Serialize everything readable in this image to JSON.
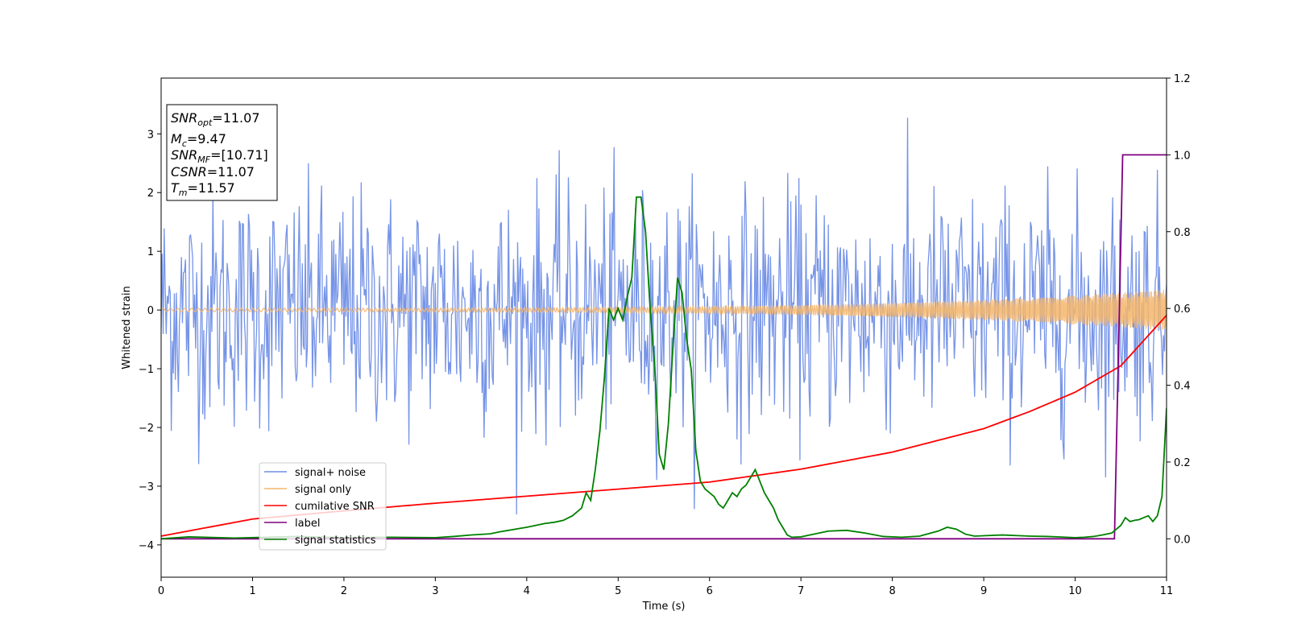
{
  "chart_data": {
    "type": "line",
    "xlabel": "Time (s)",
    "ylabel": "Whitened strain",
    "xlim": [
      0,
      11
    ],
    "ylim_left": [
      -4.55,
      3.95
    ],
    "ylim_right": [
      -0.1,
      1.2
    ],
    "xticks": [
      0,
      1,
      2,
      3,
      4,
      5,
      6,
      7,
      8,
      9,
      10,
      11
    ],
    "yticks_left": [
      -4,
      -3,
      -2,
      -1,
      0,
      1,
      2,
      3
    ],
    "yticks_right": [
      0.0,
      0.2,
      0.4,
      0.6,
      0.8,
      1.0,
      1.2
    ],
    "grid": false,
    "legend_position": "lower-left",
    "textbox": {
      "snr_opt": "=11.07",
      "mc": "=9.47",
      "snr_mf": "=[10.71]",
      "csnr": "=11.07",
      "tm": "=11.57"
    },
    "series": [
      {
        "name": "signal+ noise",
        "axis": "left",
        "color": "#6f8ee6",
        "description_level": 1.0,
        "sample_rate_hz": 90
      },
      {
        "name": "signal only",
        "axis": "left",
        "color": "#f5b56a",
        "amplitude_start": 0.03,
        "amplitude_end": 0.35
      },
      {
        "name": "cumilative SNR",
        "axis": "left",
        "color": "#ff0000",
        "x": [
          0,
          1,
          2,
          3,
          4,
          5,
          6,
          7,
          8,
          9,
          9.5,
          10,
          10.5,
          11
        ],
        "y": [
          -3.85,
          -3.56,
          -3.42,
          -3.29,
          -3.17,
          -3.05,
          -2.93,
          -2.71,
          -2.42,
          -2.02,
          -1.73,
          -1.4,
          -0.95,
          -0.09
        ]
      },
      {
        "name": "label",
        "axis": "right",
        "color": "#800080",
        "x": [
          0,
          10.43,
          10.52,
          11
        ],
        "y": [
          0,
          0,
          1,
          1
        ]
      },
      {
        "name": "signal statistics",
        "axis": "right",
        "color": "#008000",
        "x": [
          0,
          0.3,
          0.8,
          1.5,
          2.0,
          2.5,
          3.0,
          3.2,
          3.4,
          3.6,
          3.7,
          3.8,
          3.9,
          4.0,
          4.1,
          4.2,
          4.3,
          4.4,
          4.5,
          4.6,
          4.65,
          4.7,
          4.75,
          4.8,
          4.85,
          4.9,
          4.95,
          5.0,
          5.05,
          5.1,
          5.15,
          5.2,
          5.25,
          5.3,
          5.35,
          5.4,
          5.45,
          5.5,
          5.55,
          5.6,
          5.65,
          5.7,
          5.75,
          5.8,
          5.85,
          5.9,
          5.95,
          6.0,
          6.05,
          6.1,
          6.15,
          6.2,
          6.25,
          6.3,
          6.35,
          6.4,
          6.45,
          6.5,
          6.55,
          6.6,
          6.65,
          6.7,
          6.75,
          6.8,
          6.85,
          6.9,
          7.0,
          7.1,
          7.3,
          7.5,
          7.7,
          7.9,
          8.1,
          8.3,
          8.5,
          8.6,
          8.7,
          8.8,
          8.9,
          9.0,
          9.2,
          9.4,
          9.5,
          9.7,
          9.9,
          10.0,
          10.1,
          10.2,
          10.3,
          10.4,
          10.45,
          10.5,
          10.55,
          10.6,
          10.65,
          10.7,
          10.75,
          10.8,
          10.85,
          10.9,
          10.95,
          11.0
        ],
        "y": [
          0,
          0.005,
          0.002,
          0.006,
          0.003,
          0.004,
          0.003,
          0.006,
          0.01,
          0.013,
          0.018,
          0.022,
          0.026,
          0.03,
          0.035,
          0.04,
          0.043,
          0.048,
          0.06,
          0.08,
          0.12,
          0.1,
          0.18,
          0.28,
          0.42,
          0.6,
          0.57,
          0.6,
          0.57,
          0.63,
          0.68,
          0.89,
          0.89,
          0.8,
          0.6,
          0.45,
          0.22,
          0.18,
          0.3,
          0.5,
          0.68,
          0.64,
          0.52,
          0.44,
          0.23,
          0.15,
          0.13,
          0.12,
          0.11,
          0.09,
          0.08,
          0.1,
          0.12,
          0.11,
          0.13,
          0.14,
          0.16,
          0.18,
          0.15,
          0.12,
          0.1,
          0.08,
          0.05,
          0.03,
          0.01,
          0.004,
          0.005,
          0.01,
          0.02,
          0.022,
          0.015,
          0.006,
          0.004,
          0.007,
          0.02,
          0.03,
          0.025,
          0.012,
          0.007,
          0.008,
          0.01,
          0.008,
          0.007,
          0.006,
          0.004,
          0.003,
          0.004,
          0.006,
          0.01,
          0.015,
          0.025,
          0.035,
          0.055,
          0.045,
          0.048,
          0.05,
          0.055,
          0.06,
          0.045,
          0.06,
          0.11,
          0.34
        ]
      }
    ]
  }
}
